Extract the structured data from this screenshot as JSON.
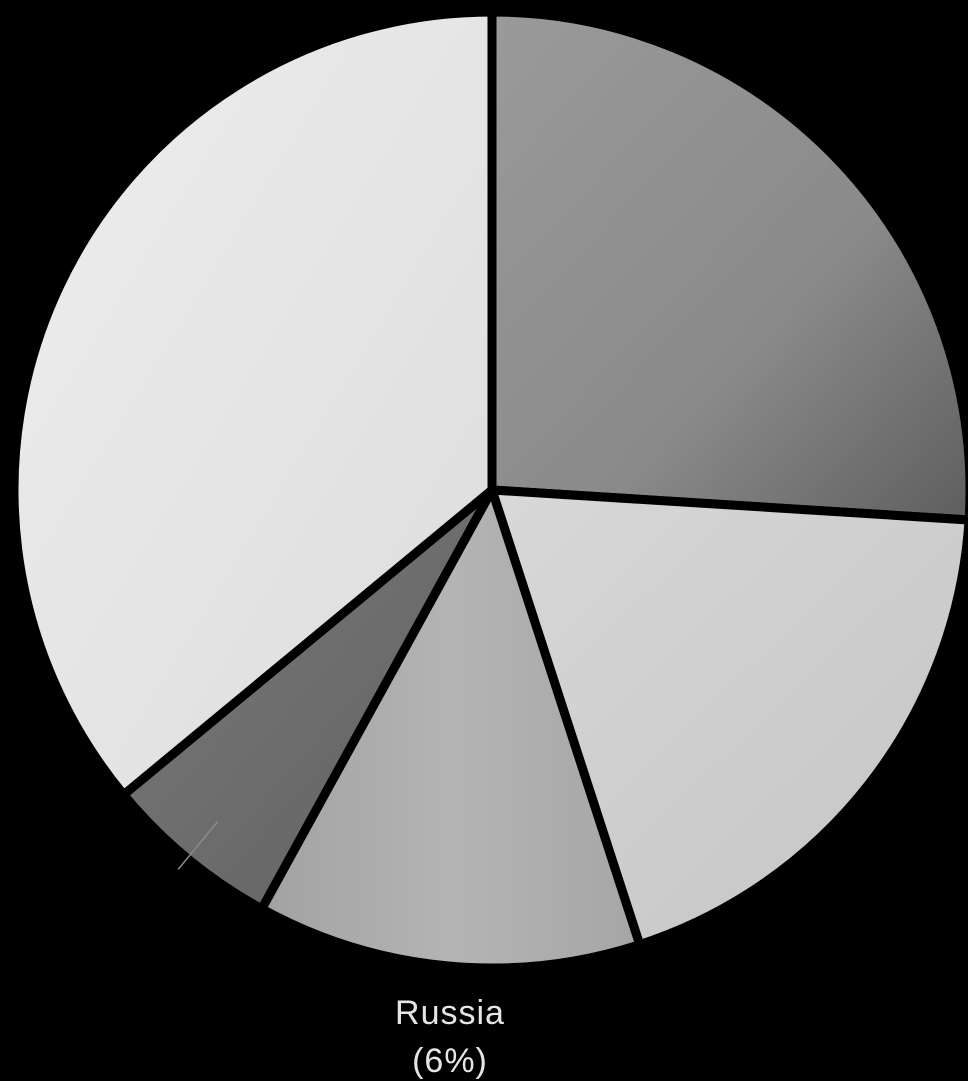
{
  "chart_data": {
    "type": "pie",
    "slices": [
      {
        "value": 26,
        "color": "#8a8a8a",
        "label": "",
        "pct_text": ""
      },
      {
        "value": 19,
        "color": "#cfcfcf",
        "label": "",
        "pct_text": ""
      },
      {
        "value": 13,
        "color": "#ababab",
        "label": "",
        "pct_text": ""
      },
      {
        "value": 6,
        "color": "#6e6e6e",
        "label": "Russia",
        "pct_text": "(6%)"
      },
      {
        "value": 36,
        "color": "#e3e3e3",
        "label": "",
        "pct_text": ""
      }
    ],
    "start_angle_deg": 0,
    "direction": "clockwise",
    "legend": "none"
  }
}
